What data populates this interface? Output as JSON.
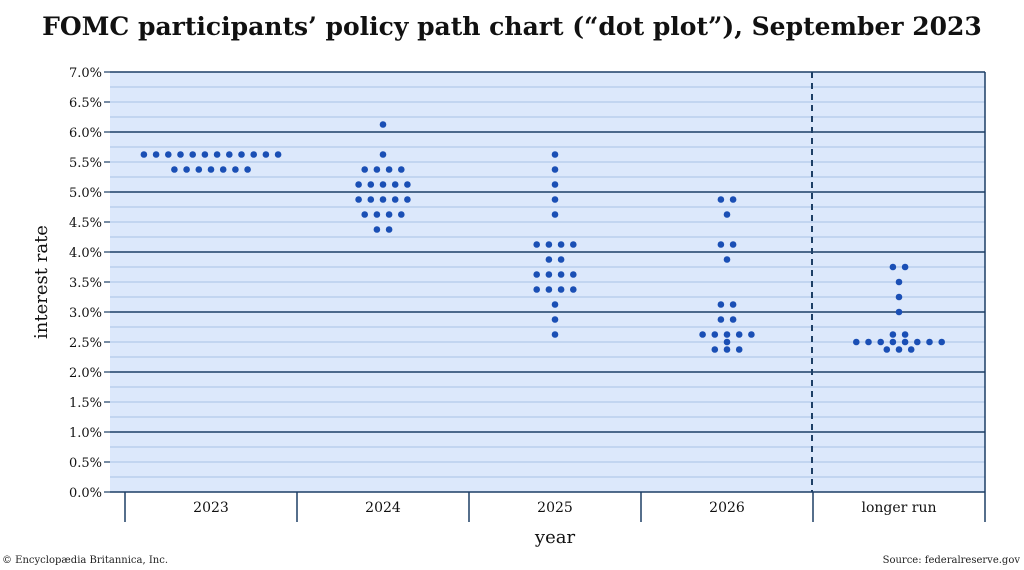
{
  "chart_data": {
    "type": "scatter",
    "title": "FOMC participants’ policy path chart (“dot plot”), September 2023",
    "xlabel": "year",
    "ylabel": "interest rate",
    "categories": [
      "2023",
      "2024",
      "2025",
      "2026",
      "longer run"
    ],
    "ylim": [
      0,
      7
    ],
    "y_ticks": [
      "0.0%",
      "0.5%",
      "1.0%",
      "1.5%",
      "2.0%",
      "2.5%",
      "3.0%",
      "3.5%",
      "4.0%",
      "4.5%",
      "5.0%",
      "5.5%",
      "6.0%",
      "6.5%",
      "7.0%"
    ],
    "grid": true,
    "divider_before": "longer run",
    "dot_color": "#1a4fb5",
    "dots": [
      {
        "category": "2023",
        "rates": [
          {
            "rate": 5.625,
            "count": 12
          },
          {
            "rate": 5.375,
            "count": 7
          }
        ]
      },
      {
        "category": "2024",
        "rates": [
          {
            "rate": 6.125,
            "count": 1
          },
          {
            "rate": 5.625,
            "count": 1
          },
          {
            "rate": 5.375,
            "count": 4
          },
          {
            "rate": 5.125,
            "count": 5
          },
          {
            "rate": 4.875,
            "count": 5
          },
          {
            "rate": 4.625,
            "count": 4
          },
          {
            "rate": 4.375,
            "count": 2
          }
        ]
      },
      {
        "category": "2025",
        "rates": [
          {
            "rate": 5.625,
            "count": 1
          },
          {
            "rate": 5.375,
            "count": 1
          },
          {
            "rate": 5.125,
            "count": 1
          },
          {
            "rate": 4.875,
            "count": 1
          },
          {
            "rate": 4.625,
            "count": 1
          },
          {
            "rate": 4.125,
            "count": 4
          },
          {
            "rate": 3.875,
            "count": 2
          },
          {
            "rate": 3.625,
            "count": 4
          },
          {
            "rate": 3.375,
            "count": 4
          },
          {
            "rate": 3.125,
            "count": 1
          },
          {
            "rate": 2.875,
            "count": 1
          },
          {
            "rate": 2.625,
            "count": 1
          }
        ]
      },
      {
        "category": "2026",
        "rates": [
          {
            "rate": 4.875,
            "count": 2
          },
          {
            "rate": 4.625,
            "count": 1
          },
          {
            "rate": 4.125,
            "count": 2
          },
          {
            "rate": 3.875,
            "count": 1
          },
          {
            "rate": 3.125,
            "count": 2
          },
          {
            "rate": 2.875,
            "count": 2
          },
          {
            "rate": 2.625,
            "count": 5
          },
          {
            "rate": 2.5,
            "count": 1
          },
          {
            "rate": 2.375,
            "count": 3
          }
        ]
      },
      {
        "category": "longer run",
        "rates": [
          {
            "rate": 3.75,
            "count": 2
          },
          {
            "rate": 3.5,
            "count": 1
          },
          {
            "rate": 3.25,
            "count": 1
          },
          {
            "rate": 3.0,
            "count": 1
          },
          {
            "rate": 2.625,
            "count": 2
          },
          {
            "rate": 2.5,
            "count": 8
          },
          {
            "rate": 2.375,
            "count": 3
          }
        ]
      }
    ]
  },
  "credits": {
    "left": "© Encyclopædia Britannica, Inc.",
    "right": "Source: federalreserve.gov"
  }
}
